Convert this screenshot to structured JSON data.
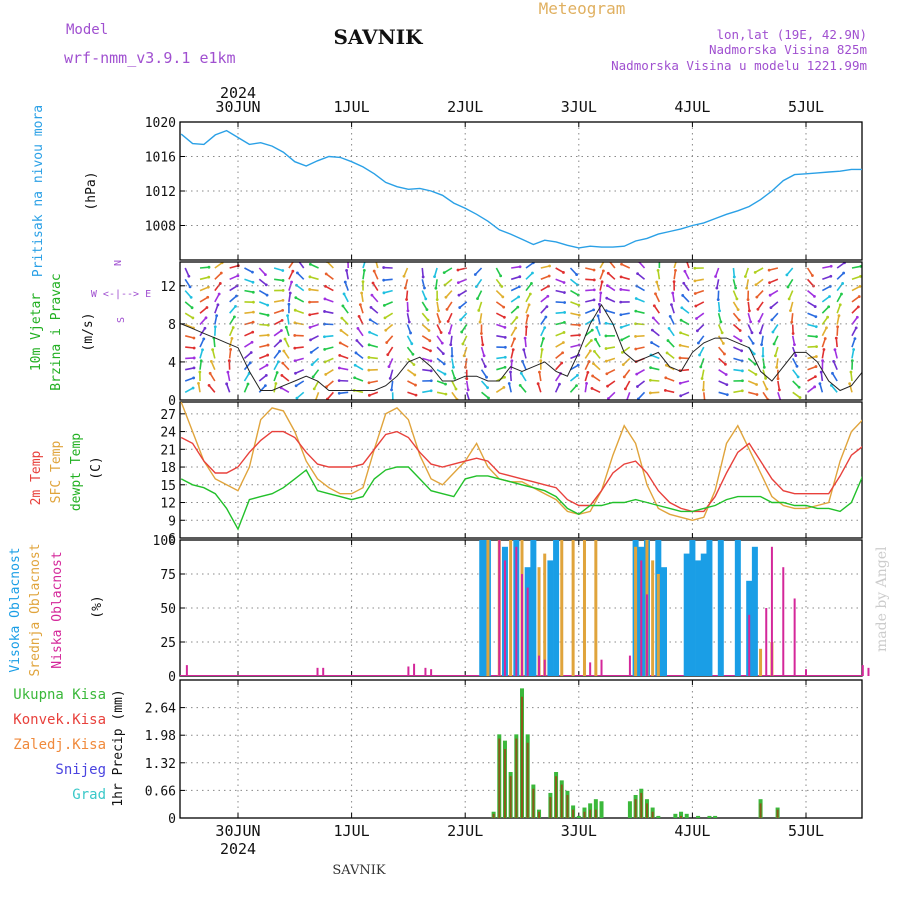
{
  "header": {
    "model_label": "Model",
    "model_value": "wrf-nmm_v3.9.1  e1km",
    "station": "SAVNIK",
    "product": "Meteogram",
    "coords": "lon,lat (19E, 42.9N)",
    "elevation": "Nadmorska Visina 825m",
    "model_elevation": "Nadmorska Visina u modelu 1221.99m",
    "year": "2024",
    "credit": "made by Angel",
    "footer": "SAVNIK"
  },
  "colors": {
    "pressure": "#2aa0e6",
    "temp2m": "#e8413c",
    "sfc": "#e0a43c",
    "dew": "#22c02a",
    "high": "#1a9ee6",
    "mid": "#e0a43c",
    "low": "#d4279a",
    "total_precip": "#3bb83b",
    "conv_precip": "#e8413c",
    "frozen": "#f08a3c",
    "snow": "#4a44e0",
    "graupel": "#3ac8c8",
    "model_purple": "#a050d0"
  },
  "chart_data": [
    {
      "type": "line",
      "panel": "pressure",
      "ylabel_1": "Pritisak na nivou mora",
      "ylabel_2": "(hPa)",
      "ylim": [
        1004,
        1020
      ],
      "yticks": [
        1008,
        1012,
        1016,
        1020
      ],
      "x_days": [
        "30JUN",
        "1JUL",
        "2JUL",
        "3JUL",
        "4JUL",
        "5JUL"
      ],
      "x_range_days": [
        -0.5,
        5.5
      ],
      "x": [
        -0.5,
        -0.4,
        -0.3,
        -0.2,
        -0.1,
        0.0,
        0.1,
        0.2,
        0.3,
        0.4,
        0.5,
        0.6,
        0.7,
        0.8,
        0.9,
        1.0,
        1.1,
        1.2,
        1.3,
        1.4,
        1.5,
        1.6,
        1.7,
        1.8,
        1.9,
        2.0,
        2.1,
        2.2,
        2.3,
        2.4,
        2.5,
        2.6,
        2.7,
        2.8,
        2.9,
        3.0,
        3.1,
        3.2,
        3.3,
        3.4,
        3.5,
        3.6,
        3.7,
        3.8,
        3.9,
        4.0,
        4.1,
        4.2,
        4.3,
        4.4,
        4.5,
        4.6,
        4.7,
        4.8,
        4.9,
        5.0,
        5.1,
        5.2,
        5.3,
        5.4,
        5.5
      ],
      "series": [
        {
          "values": [
            1018.6,
            1017.5,
            1017.4,
            1018.5,
            1019.0,
            1018.2,
            1017.4,
            1017.6,
            1017.2,
            1016.5,
            1015.4,
            1014.9,
            1015.5,
            1016.0,
            1015.9,
            1015.4,
            1014.8,
            1014.0,
            1013.0,
            1012.5,
            1012.2,
            1012.3,
            1012.0,
            1011.5,
            1010.6,
            1010.0,
            1009.3,
            1008.5,
            1007.5,
            1007.0,
            1006.4,
            1005.8,
            1006.3,
            1006.1,
            1005.7,
            1005.4,
            1005.6,
            1005.5,
            1005.5,
            1005.6,
            1006.2,
            1006.5,
            1007.0,
            1007.3,
            1007.6,
            1008.0,
            1008.3,
            1008.8,
            1009.3,
            1009.7,
            1010.2,
            1011.0,
            1012.0,
            1013.2,
            1013.9,
            1014.0,
            1014.1,
            1014.2,
            1014.3,
            1014.5,
            1014.5
          ]
        }
      ]
    },
    {
      "type": "line",
      "panel": "wind",
      "ylabel_1": "10m Vjetar",
      "ylabel_1b": "Brzina i Pravac",
      "ylabel_2": "(m/s)",
      "legend_dir_top": "N",
      "legend_dir_mid": "W  <-|-->  E",
      "legend_dir_bottom": "S",
      "ylim": [
        0,
        14.5
      ],
      "yticks": [
        0,
        4,
        8,
        12
      ],
      "x": [
        -0.5,
        -0.4,
        -0.3,
        -0.2,
        -0.1,
        0.0,
        0.1,
        0.2,
        0.3,
        0.4,
        0.5,
        0.6,
        0.7,
        0.8,
        0.9,
        1.0,
        1.1,
        1.2,
        1.3,
        1.4,
        1.5,
        1.6,
        1.7,
        1.8,
        1.9,
        2.0,
        2.1,
        2.2,
        2.3,
        2.4,
        2.5,
        2.6,
        2.7,
        2.8,
        2.9,
        3.0,
        3.1,
        3.2,
        3.3,
        3.4,
        3.5,
        3.6,
        3.7,
        3.8,
        3.9,
        4.0,
        4.1,
        4.2,
        4.3,
        4.4,
        4.5,
        4.6,
        4.7,
        4.8,
        4.9,
        5.0,
        5.1,
        5.2,
        5.3,
        5.4,
        5.5
      ],
      "series": [
        {
          "values": [
            8.0,
            7.5,
            7.0,
            6.5,
            6.0,
            5.5,
            3.0,
            1.0,
            1.0,
            1.5,
            2.0,
            2.5,
            2.0,
            1.0,
            1.0,
            1.0,
            1.0,
            1.0,
            1.5,
            2.5,
            4.0,
            4.5,
            3.5,
            2.0,
            2.0,
            2.5,
            2.5,
            2.0,
            2.0,
            3.5,
            3.0,
            3.5,
            4.0,
            3.0,
            2.5,
            5.0,
            8.0,
            10.0,
            8.0,
            5.0,
            4.0,
            4.5,
            5.0,
            3.5,
            3.0,
            5.0,
            6.0,
            6.5,
            6.5,
            6.0,
            5.5,
            3.0,
            2.0,
            3.5,
            5.0,
            5.0,
            4.0,
            2.0,
            1.0,
            1.5,
            3.0
          ]
        }
      ]
    },
    {
      "type": "line",
      "panel": "temperature",
      "ylabel_1": "2m Temp",
      "ylabel_1b": "SFC Temp",
      "ylabel_1c": "dewpt Temp",
      "ylabel_2": "(C)",
      "ylim": [
        6,
        29
      ],
      "yticks": [
        6,
        9,
        12,
        15,
        18,
        21,
        24,
        27
      ],
      "x": [
        -0.5,
        -0.4,
        -0.3,
        -0.2,
        -0.1,
        0.0,
        0.1,
        0.2,
        0.3,
        0.4,
        0.5,
        0.6,
        0.7,
        0.8,
        0.9,
        1.0,
        1.1,
        1.2,
        1.3,
        1.4,
        1.5,
        1.6,
        1.7,
        1.8,
        1.9,
        2.0,
        2.1,
        2.2,
        2.3,
        2.4,
        2.5,
        2.6,
        2.7,
        2.8,
        2.9,
        3.0,
        3.1,
        3.2,
        3.3,
        3.4,
        3.5,
        3.6,
        3.7,
        3.8,
        3.9,
        4.0,
        4.1,
        4.2,
        4.3,
        4.4,
        4.5,
        4.6,
        4.7,
        4.8,
        4.9,
        5.0,
        5.1,
        5.2,
        5.3,
        5.4,
        5.5
      ],
      "series": [
        {
          "name": "2m Temp",
          "values": [
            23.0,
            22.0,
            19.0,
            17.0,
            17.0,
            18.0,
            20.5,
            22.5,
            24.0,
            24.0,
            23.0,
            20.5,
            18.5,
            18.0,
            18.0,
            18.0,
            18.5,
            21.0,
            23.5,
            24.0,
            23.0,
            20.5,
            18.5,
            18.0,
            18.5,
            19.0,
            19.5,
            19.0,
            17.0,
            16.5,
            16.0,
            15.5,
            15.0,
            14.5,
            12.5,
            11.5,
            11.5,
            14.0,
            17.0,
            18.5,
            19.0,
            17.0,
            14.0,
            12.0,
            11.0,
            10.5,
            10.5,
            13.0,
            17.0,
            20.5,
            22.0,
            19.0,
            16.0,
            14.0,
            13.5,
            13.5,
            13.5,
            13.5,
            16.5,
            20.0,
            21.5
          ]
        },
        {
          "name": "SFC Temp",
          "values": [
            29.0,
            24.0,
            19.0,
            16.0,
            15.0,
            14.0,
            18.0,
            26.0,
            28.0,
            27.5,
            24.0,
            19.0,
            16.0,
            14.5,
            13.5,
            13.5,
            14.5,
            21.0,
            27.0,
            28.0,
            26.0,
            20.0,
            16.0,
            15.0,
            17.0,
            19.0,
            22.0,
            18.0,
            16.0,
            15.5,
            15.5,
            14.5,
            13.5,
            12.5,
            10.5,
            10.0,
            10.5,
            14.0,
            20.0,
            25.0,
            22.0,
            15.0,
            11.0,
            10.0,
            9.5,
            9.0,
            9.5,
            14.0,
            22.0,
            25.0,
            21.0,
            17.0,
            13.0,
            11.5,
            11.0,
            11.0,
            11.5,
            12.0,
            19.0,
            24.0,
            26.0
          ]
        },
        {
          "name": "dewpt Temp",
          "values": [
            16.0,
            15.0,
            14.5,
            13.5,
            11.0,
            7.5,
            12.5,
            13.0,
            13.5,
            14.5,
            16.0,
            17.5,
            14.0,
            13.5,
            13.0,
            12.5,
            13.0,
            16.0,
            17.5,
            18.0,
            18.0,
            16.0,
            14.0,
            13.5,
            13.0,
            16.0,
            16.5,
            16.5,
            16.0,
            15.5,
            15.0,
            14.5,
            14.0,
            13.0,
            11.0,
            10.0,
            11.5,
            11.5,
            12.0,
            12.0,
            12.5,
            12.0,
            11.5,
            11.0,
            10.5,
            10.5,
            11.0,
            11.5,
            12.5,
            13.0,
            13.0,
            13.0,
            12.0,
            12.0,
            11.5,
            11.5,
            11.0,
            11.0,
            10.5,
            12.0,
            16.5
          ]
        }
      ]
    },
    {
      "type": "bar",
      "panel": "clouds",
      "ylabel_1": "Visoka Oblacnost",
      "ylabel_1b": "Srednja Oblacnost",
      "ylabel_1c": "Niska Oblacnost",
      "ylabel_2": "(%)",
      "ylim": [
        0,
        100
      ],
      "yticks": [
        0,
        25,
        50,
        75,
        100
      ],
      "series": [
        {
          "name": "Visoka Oblacnost",
          "points": [
            [
              2.15,
              100
            ],
            [
              2.2,
              100
            ],
            [
              2.35,
              95
            ],
            [
              2.45,
              100
            ],
            [
              2.55,
              80
            ],
            [
              2.6,
              100
            ],
            [
              2.75,
              85
            ],
            [
              2.8,
              100
            ],
            [
              3.5,
              100
            ],
            [
              3.55,
              95
            ],
            [
              3.6,
              100
            ],
            [
              3.7,
              100
            ],
            [
              3.75,
              80
            ],
            [
              3.95,
              90
            ],
            [
              4.0,
              100
            ],
            [
              4.05,
              85
            ],
            [
              4.1,
              90
            ],
            [
              4.15,
              100
            ],
            [
              4.25,
              100
            ],
            [
              4.4,
              100
            ],
            [
              4.5,
              70
            ],
            [
              4.55,
              95
            ]
          ]
        },
        {
          "name": "Srednja Oblacnost",
          "points": [
            [
              2.2,
              100
            ],
            [
              2.3,
              100
            ],
            [
              2.4,
              100
            ],
            [
              2.5,
              100
            ],
            [
              2.65,
              80
            ],
            [
              2.7,
              90
            ],
            [
              2.85,
              100
            ],
            [
              2.95,
              100
            ],
            [
              3.05,
              100
            ],
            [
              3.15,
              100
            ],
            [
              3.5,
              95
            ],
            [
              3.6,
              100
            ],
            [
              3.65,
              85
            ],
            [
              3.7,
              75
            ],
            [
              4.6,
              20
            ],
            [
              4.7,
              25
            ]
          ]
        },
        {
          "name": "Niska Oblacnost",
          "points": [
            [
              -0.45,
              8
            ],
            [
              0.7,
              6
            ],
            [
              0.75,
              6
            ],
            [
              1.5,
              7
            ],
            [
              1.55,
              9
            ],
            [
              1.65,
              6
            ],
            [
              1.7,
              5
            ],
            [
              2.3,
              100
            ],
            [
              2.35,
              85
            ],
            [
              2.45,
              95
            ],
            [
              2.5,
              75
            ],
            [
              2.55,
              65
            ],
            [
              2.65,
              15
            ],
            [
              2.7,
              12
            ],
            [
              3.1,
              10
            ],
            [
              3.2,
              12
            ],
            [
              3.45,
              15
            ],
            [
              3.55,
              85
            ],
            [
              3.6,
              60
            ],
            [
              4.5,
              45
            ],
            [
              4.65,
              50
            ],
            [
              4.7,
              95
            ],
            [
              4.8,
              80
            ],
            [
              4.9,
              57
            ],
            [
              5.0,
              5
            ],
            [
              5.5,
              8
            ],
            [
              5.55,
              6
            ]
          ]
        }
      ]
    },
    {
      "type": "bar",
      "panel": "precipitation",
      "ylabel_2": "1hr Precip (mm)",
      "legend": [
        "Ukupna Kisa",
        "Konvek.Kisa",
        "Zaledj.Kisa",
        "Snijeg",
        "Grad"
      ],
      "ylim": [
        0,
        3.3
      ],
      "yticks": [
        0,
        0.66,
        1.32,
        1.98,
        2.64
      ],
      "series": [
        {
          "name": "Ukupna Kisa",
          "points": [
            [
              2.25,
              0.15
            ],
            [
              2.3,
              2.0
            ],
            [
              2.35,
              1.85
            ],
            [
              2.4,
              1.1
            ],
            [
              2.45,
              2.0
            ],
            [
              2.5,
              3.1
            ],
            [
              2.55,
              2.0
            ],
            [
              2.6,
              0.8
            ],
            [
              2.65,
              0.2
            ],
            [
              2.75,
              0.6
            ],
            [
              2.8,
              1.1
            ],
            [
              2.85,
              0.9
            ],
            [
              2.9,
              0.65
            ],
            [
              2.95,
              0.3
            ],
            [
              3.0,
              0.05
            ],
            [
              3.05,
              0.25
            ],
            [
              3.1,
              0.35
            ],
            [
              3.15,
              0.45
            ],
            [
              3.2,
              0.4
            ],
            [
              3.45,
              0.4
            ],
            [
              3.5,
              0.55
            ],
            [
              3.55,
              0.7
            ],
            [
              3.6,
              0.45
            ],
            [
              3.65,
              0.25
            ],
            [
              3.7,
              0.05
            ],
            [
              3.85,
              0.1
            ],
            [
              3.9,
              0.15
            ],
            [
              3.95,
              0.1
            ],
            [
              4.05,
              0.05
            ],
            [
              4.15,
              0.05
            ],
            [
              4.2,
              0.05
            ],
            [
              4.6,
              0.45
            ],
            [
              4.75,
              0.25
            ]
          ]
        },
        {
          "name": "Konvek.Kisa",
          "points": [
            [
              2.25,
              0.1
            ],
            [
              2.3,
              1.9
            ],
            [
              2.35,
              1.65
            ],
            [
              2.4,
              1.0
            ],
            [
              2.45,
              1.9
            ],
            [
              2.5,
              2.9
            ],
            [
              2.55,
              1.8
            ],
            [
              2.6,
              0.7
            ],
            [
              2.65,
              0.15
            ],
            [
              2.75,
              0.5
            ],
            [
              2.8,
              1.0
            ],
            [
              2.85,
              0.8
            ],
            [
              2.9,
              0.55
            ],
            [
              2.95,
              0.2
            ],
            [
              3.05,
              0.15
            ],
            [
              3.1,
              0.2
            ],
            [
              3.15,
              0.2
            ],
            [
              3.5,
              0.45
            ],
            [
              3.55,
              0.6
            ],
            [
              3.6,
              0.35
            ],
            [
              3.65,
              0.15
            ],
            [
              3.9,
              0.05
            ],
            [
              4.6,
              0.35
            ],
            [
              4.75,
              0.2
            ]
          ]
        }
      ]
    }
  ]
}
